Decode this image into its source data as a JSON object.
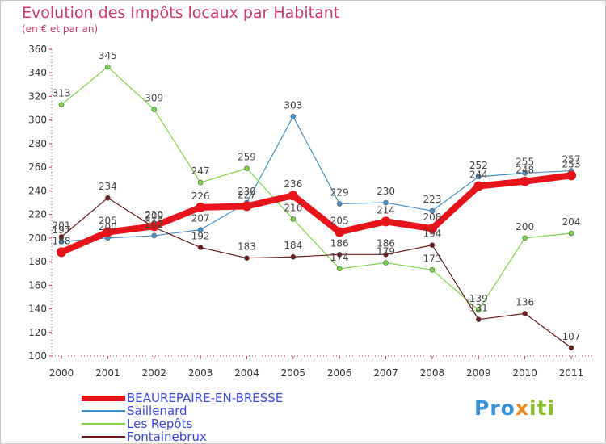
{
  "title": "Evolution des Impôts locaux par Habitant",
  "subtitle": "(en € et par an)",
  "logo": {
    "part1": "Pro",
    "part2": "x",
    "part3": "iti"
  },
  "chart_data": {
    "type": "line",
    "title": "Evolution des Impôts locaux par Habitant",
    "subtitle": "(en € et par an)",
    "xlabel": "",
    "ylabel": "",
    "ylim": [
      100,
      360
    ],
    "yticks": [
      100,
      120,
      140,
      160,
      180,
      200,
      220,
      240,
      260,
      280,
      300,
      320,
      340,
      360
    ],
    "grid": false,
    "legend_position": "bottom-left",
    "categories": [
      "2000",
      "2001",
      "2002",
      "2003",
      "2004",
      "2005",
      "2006",
      "2007",
      "2008",
      "2009",
      "2010",
      "2011"
    ],
    "series": [
      {
        "name": "BEAUREPAIRE-EN-BRESSE",
        "color": "#e8141c",
        "values": [
          188,
          205,
          210,
          226,
          227,
          236,
          205,
          214,
          208,
          244,
          248,
          253
        ]
      },
      {
        "name": "Saillenard",
        "color": "#4a90c8",
        "values": [
          197,
          200,
          202,
          207,
          230,
          303,
          229,
          230,
          223,
          252,
          255,
          257
        ]
      },
      {
        "name": "Les Repôts",
        "color": "#7dd64a",
        "values": [
          313,
          345,
          309,
          247,
          259,
          216,
          174,
          179,
          173,
          139,
          200,
          204
        ]
      },
      {
        "name": "Fontainebrux",
        "color": "#6b1c1c",
        "values": [
          201,
          234,
          209,
          192,
          183,
          184,
          186,
          186,
          194,
          131,
          136,
          107
        ]
      }
    ]
  }
}
